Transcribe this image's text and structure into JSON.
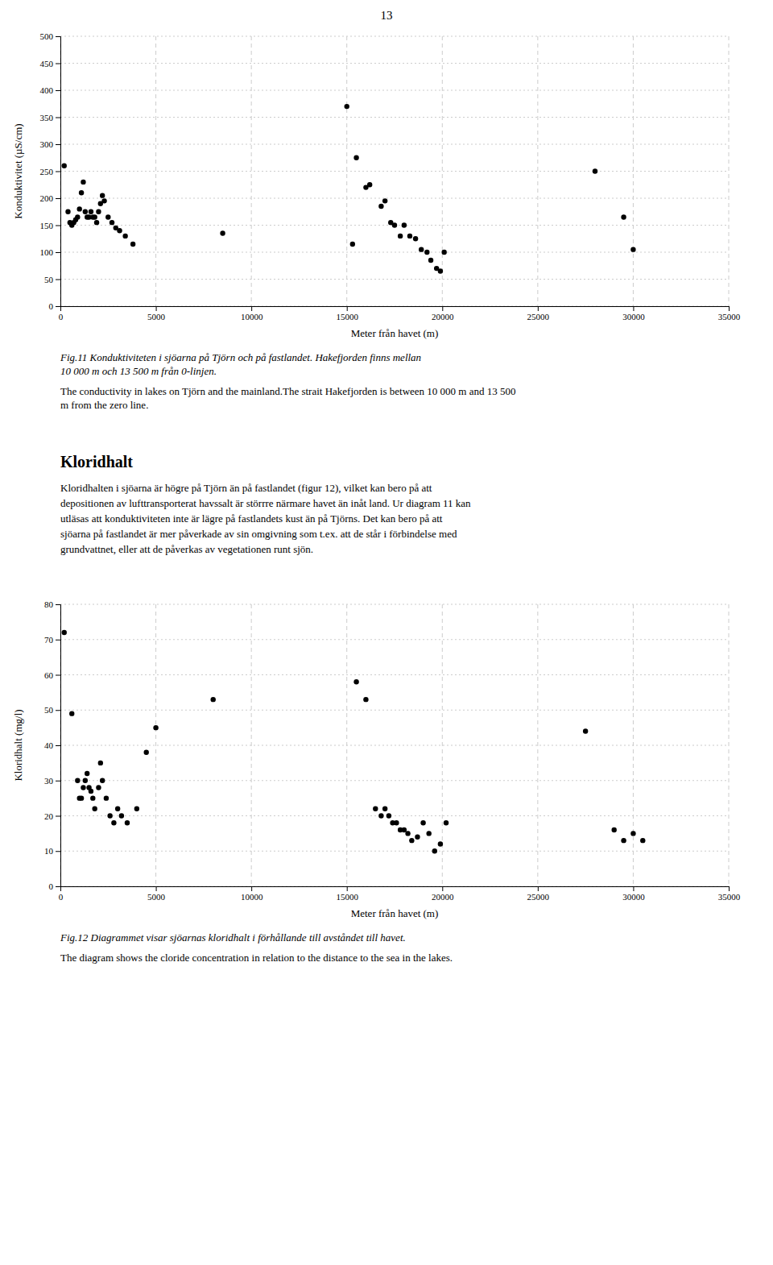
{
  "page_number": "13",
  "chart_data": [
    {
      "type": "scatter",
      "xlabel": "Meter från havet (m)",
      "ylabel": "Konduktivitet (µS/cm)",
      "xlim": [
        0,
        35000
      ],
      "ylim": [
        0,
        500
      ],
      "xticks": [
        0,
        5000,
        10000,
        15000,
        20000,
        25000,
        30000,
        35000
      ],
      "yticks": [
        0,
        50,
        100,
        150,
        200,
        250,
        300,
        350,
        400,
        450,
        500
      ],
      "grid": true,
      "color": "#000000",
      "x": [
        200,
        400,
        500,
        600,
        700,
        800,
        900,
        1000,
        1100,
        1200,
        1300,
        1400,
        1500,
        1600,
        1700,
        1800,
        1900,
        2000,
        2100,
        2200,
        2300,
        2500,
        2700,
        2900,
        3100,
        3400,
        3800,
        8500,
        15000,
        15500,
        16000,
        16200,
        16800,
        17000,
        17300,
        17500,
        17800,
        18000,
        18300,
        18600,
        18900,
        19200,
        19400,
        19700,
        19900,
        20100,
        15300,
        28000,
        29500,
        30000
      ],
      "y": [
        260,
        175,
        155,
        150,
        155,
        160,
        165,
        180,
        210,
        230,
        175,
        165,
        165,
        175,
        165,
        165,
        155,
        175,
        190,
        205,
        195,
        165,
        155,
        145,
        140,
        130,
        115,
        135,
        370,
        275,
        220,
        225,
        185,
        195,
        155,
        150,
        130,
        150,
        130,
        125,
        105,
        100,
        85,
        70,
        65,
        100,
        115,
        250,
        165,
        105
      ],
      "caption_italic": "Fig.11 Konduktiviteten i sjöarna på Tjörn och på fastlandet. Hakefjorden finns mellan\n10 000 m och 13 500 m från 0-linjen.",
      "caption": "The conductivity in lakes on Tjörn and the mainland.The strait Hakefjorden is between 10 000 m and 13 500\nm from the zero line."
    },
    {
      "type": "scatter",
      "xlabel": "Meter från havet (m)",
      "ylabel": "Kloridhalt (mg/l)",
      "xlim": [
        0,
        35000
      ],
      "ylim": [
        0,
        80
      ],
      "xticks": [
        0,
        5000,
        10000,
        15000,
        20000,
        25000,
        30000,
        35000
      ],
      "yticks": [
        0,
        10,
        20,
        30,
        40,
        50,
        60,
        70,
        80
      ],
      "grid": true,
      "color": "#000000",
      "x": [
        200,
        600,
        900,
        1000,
        1100,
        1200,
        1300,
        1400,
        1500,
        1600,
        1700,
        1800,
        2000,
        2100,
        2200,
        2400,
        2600,
        2800,
        3000,
        3200,
        3500,
        4000,
        4500,
        5000,
        8000,
        15500,
        16000,
        16500,
        16800,
        17000,
        17200,
        17400,
        17600,
        17800,
        18000,
        18200,
        18400,
        18700,
        19000,
        19300,
        19600,
        19900,
        20200,
        27500,
        29000,
        29500,
        30000,
        30500
      ],
      "y": [
        72,
        49,
        30,
        25,
        25,
        28,
        30,
        32,
        28,
        27,
        25,
        22,
        28,
        35,
        30,
        25,
        20,
        18,
        22,
        20,
        18,
        22,
        38,
        45,
        53,
        58,
        53,
        22,
        20,
        22,
        20,
        18,
        18,
        16,
        16,
        15,
        13,
        14,
        18,
        15,
        10,
        12,
        18,
        44,
        16,
        13,
        15,
        13
      ],
      "caption_italic": "Fig.12 Diagrammet visar sjöarnas kloridhalt i förhållande till avståndet till havet.",
      "caption": "The diagram shows the cloride concentration in relation to the distance to the sea in the lakes."
    }
  ],
  "section_title": "Kloridhalt",
  "section_text": [
    "Kloridhalten i sjöarna är högre på Tjörn än på fastlandet (figur 12), vilket kan bero på att",
    "depositionen av lufttransporterat havssalt är störrre närmare havet än inåt land. Ur diagram 11 kan",
    "utläsas att konduktiviteten inte är lägre på fastlandets kust än på Tjörns. Det kan bero på att",
    "sjöarna på fastlandet är mer påverkade av sin omgivning som t.ex. att de står i förbindelse med",
    "grundvattnet, eller att de påverkas av vegetationen runt sjön."
  ]
}
